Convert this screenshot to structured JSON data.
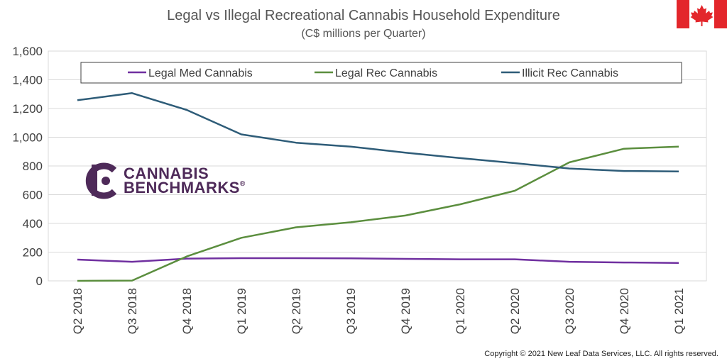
{
  "chart_data": {
    "type": "line",
    "title": "Legal vs Illegal Recreational Cannabis Household Expenditure",
    "subtitle": "(C$ millions per Quarter)",
    "categories": [
      "Q2 2018",
      "Q3 2018",
      "Q4 2018",
      "Q1 2019",
      "Q2 2019",
      "Q3 2019",
      "Q4 2019",
      "Q1 2020",
      "Q2 2020",
      "Q3 2020",
      "Q4 2020",
      "Q1 2021"
    ],
    "ylim": [
      0,
      1600
    ],
    "yticks": [
      0,
      200,
      400,
      600,
      800,
      1000,
      1200,
      1400,
      1600
    ],
    "ytick_labels": [
      "0",
      "200",
      "400",
      "600",
      "800",
      "1,000",
      "1,200",
      "1,400",
      "1,600"
    ],
    "grid": true,
    "legend_position": "top",
    "series": [
      {
        "name": "Legal Med Cannabis",
        "color": "#7030a0",
        "values": [
          148,
          133,
          155,
          158,
          158,
          157,
          153,
          150,
          150,
          133,
          128,
          125
        ]
      },
      {
        "name": "Legal Rec Cannabis",
        "color": "#5b8e3e",
        "values": [
          0,
          2,
          170,
          300,
          373,
          408,
          455,
          533,
          627,
          825,
          920,
          935
        ]
      },
      {
        "name": "Illicit Rec Cannabis",
        "color": "#2e5c78",
        "values": [
          1258,
          1307,
          1190,
          1020,
          962,
          935,
          893,
          855,
          820,
          782,
          765,
          762
        ]
      }
    ]
  },
  "logo": {
    "line1": "CANNABIS",
    "line2": "BENCHMARKS",
    "registered": "®",
    "color": "#4e2a59"
  },
  "flag": {
    "name": "canada-flag",
    "red": "#e3262b"
  },
  "copyright": "Copyright © 2021 New Leaf Data Services, LLC. All rights reserved."
}
